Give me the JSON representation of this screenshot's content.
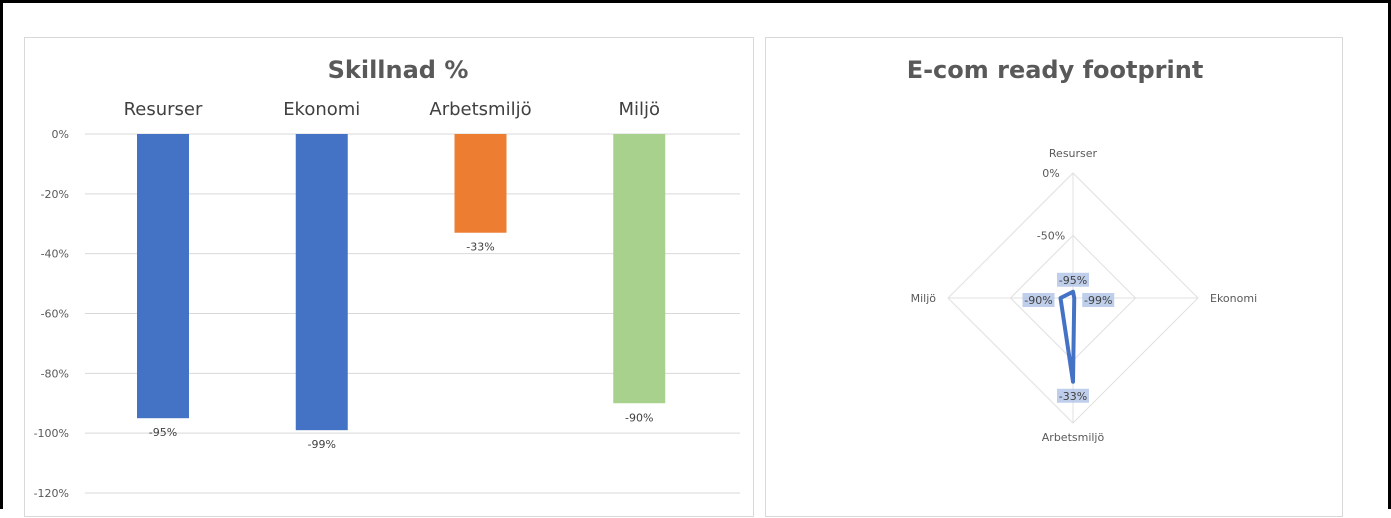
{
  "chart_data": [
    {
      "type": "bar",
      "title": "Skillnad %",
      "categories": [
        "Resurser",
        "Ekonomi",
        "Arbetsmiljö",
        "Miljö"
      ],
      "values": [
        -95,
        -99,
        -33,
        -90
      ],
      "data_labels": [
        "-95%",
        "-99%",
        "-33%",
        "-90%"
      ],
      "colors": [
        "#4472c4",
        "#4472c4",
        "#ed7d31",
        "#a9d18e"
      ],
      "yticks": [
        0,
        -20,
        -40,
        -60,
        -80,
        -100,
        -120
      ],
      "ytick_labels": [
        "0%",
        "-20%",
        "-40%",
        "-60%",
        "-80%",
        "-100%",
        "-120%"
      ],
      "ylim": [
        -120,
        0
      ],
      "grid": true,
      "category_labels_position": "top"
    },
    {
      "type": "radar",
      "title": "E-com ready footprint",
      "categories": [
        "Resurser",
        "Ekonomi",
        "Arbetsmiljö",
        "Miljö"
      ],
      "values": [
        -95,
        -99,
        -33,
        -90
      ],
      "data_labels": [
        "-95%",
        "-99%",
        "-33%",
        "-90%"
      ],
      "rlim": [
        -100,
        0
      ],
      "rticks": [
        0,
        -50
      ],
      "rtick_labels": [
        "0%",
        "-50%"
      ],
      "series_color": "#4472c4",
      "grid": true
    }
  ]
}
